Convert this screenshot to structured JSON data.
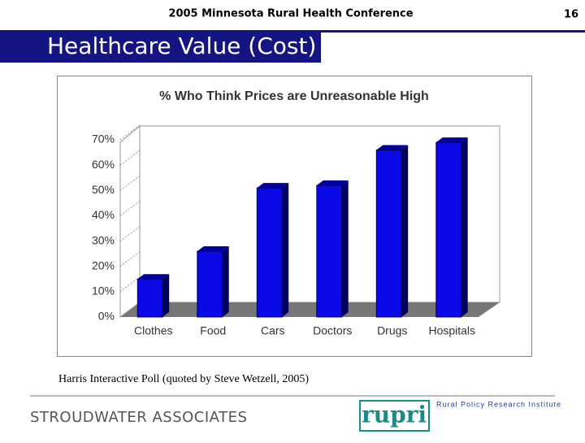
{
  "header": {
    "conference": "2005 Minnesota Rural Health Conference",
    "page_number": "16",
    "title": "Healthcare Value (Cost)"
  },
  "chart_data": {
    "type": "bar",
    "title": "% Who Think Prices are Unreasonable High",
    "categories": [
      "Clothes",
      "Food",
      "Cars",
      "Doctors",
      "Drugs",
      "Hospitals"
    ],
    "values": [
      15,
      26,
      51,
      52,
      66,
      69
    ],
    "color": "#0a0ae6",
    "ylim": [
      0,
      70
    ],
    "yticks": [
      {
        "value": 0,
        "label": "0%"
      },
      {
        "value": 10,
        "label": "10%"
      },
      {
        "value": 20,
        "label": "20%"
      },
      {
        "value": 30,
        "label": "30%"
      },
      {
        "value": 40,
        "label": "40%"
      },
      {
        "value": 50,
        "label": "50%"
      },
      {
        "value": 60,
        "label": "60%"
      },
      {
        "value": 70,
        "label": "70%"
      }
    ],
    "grid": true
  },
  "source": "Harris Interactive Poll (quoted by Steve Wetzell, 2005)",
  "footer": {
    "company": "STROUDWATER ASSOCIATES",
    "logo": "rupri",
    "institute": "Rural Policy Research Institute"
  }
}
